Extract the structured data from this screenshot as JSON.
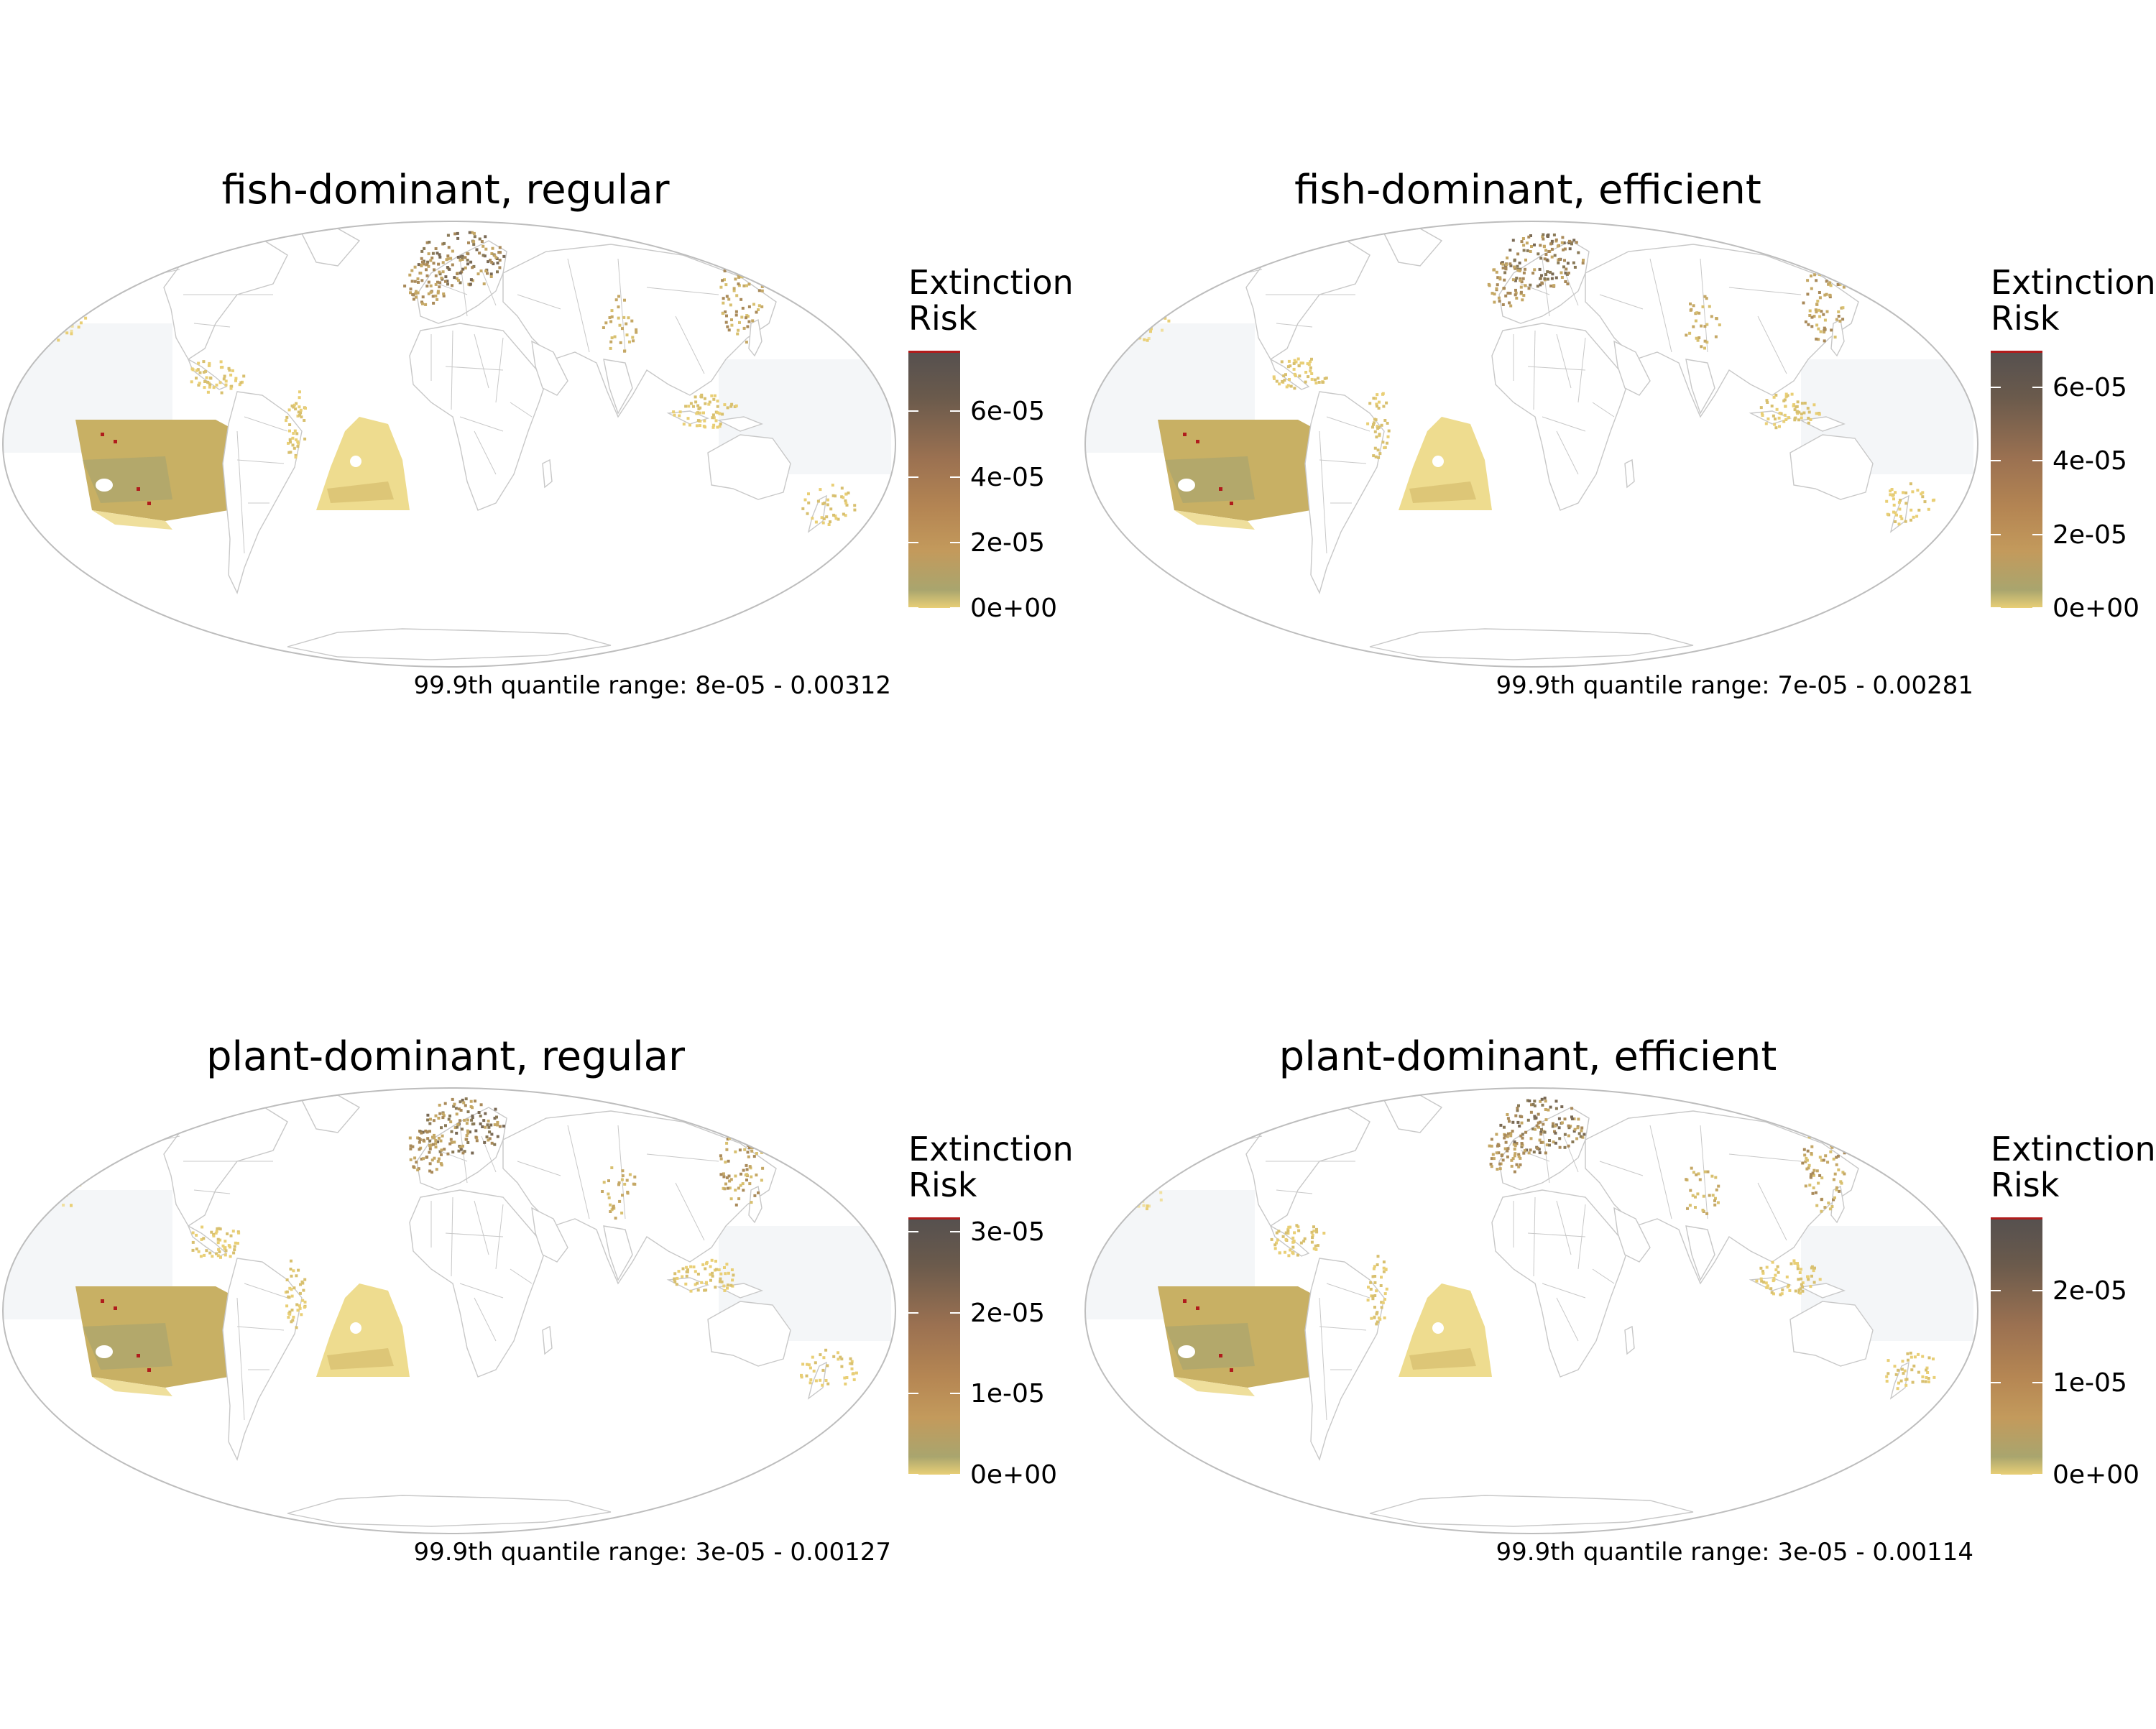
{
  "panels": [
    {
      "title": "fish-dominant, regular",
      "legend_title_line1": "Extinction",
      "legend_title_line2": "Risk",
      "ticks": [
        "6e-05",
        "4e-05",
        "2e-05",
        "0e+00"
      ],
      "tick_values": [
        6e-05,
        4e-05,
        2e-05,
        0
      ],
      "scale_max": 7.85e-05,
      "caption": "99.9th quantile range: 8e-05 - 0.00312"
    },
    {
      "title": "fish-dominant, efficient",
      "legend_title_line1": "Extinction",
      "legend_title_line2": "Risk",
      "ticks": [
        "6e-05",
        "4e-05",
        "2e-05",
        "0e+00"
      ],
      "tick_values": [
        6e-05,
        4e-05,
        2e-05,
        0
      ],
      "scale_max": 7e-05,
      "caption": "99.9th quantile range: 7e-05 - 0.00281"
    },
    {
      "title": "plant-dominant, regular",
      "legend_title_line1": "Extinction",
      "legend_title_line2": "Risk",
      "ticks": [
        "3e-05",
        "2e-05",
        "1e-05",
        "0e+00"
      ],
      "tick_values": [
        3e-05,
        2e-05,
        1e-05,
        0
      ],
      "scale_max": 3.18e-05,
      "caption": "99.9th quantile range: 3e-05 - 0.00127"
    },
    {
      "title": "plant-dominant, efficient",
      "legend_title_line1": "Extinction",
      "legend_title_line2": "Risk",
      "ticks": [
        "2e-05",
        "1e-05",
        "0e+00"
      ],
      "tick_values": [
        2e-05,
        1e-05,
        0
      ],
      "scale_max": 2.8e-05,
      "caption": "99.9th quantile range: 3e-05 - 0.00114"
    }
  ],
  "colors": {
    "low": "#e9cf76",
    "mid": "#b58653",
    "high": "#55504f",
    "max_marker": "#b01c1c",
    "country_border": "#c8c8c8",
    "ocean_noise": "#f4f6f8"
  }
}
